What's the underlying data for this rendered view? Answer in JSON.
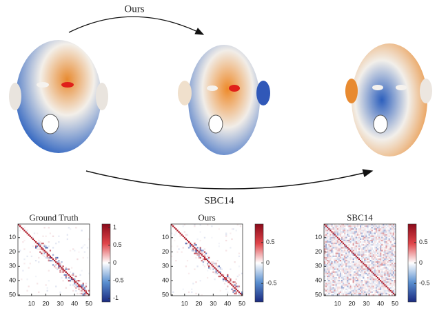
{
  "labels": {
    "top_arrow": "Ours",
    "bottom_arrow": "SBC14"
  },
  "matrices": [
    {
      "title": "Ground Truth",
      "xticks": [
        10,
        20,
        30,
        40,
        50
      ],
      "yticks": [
        10,
        20,
        30,
        40,
        50
      ],
      "xlim": [
        0.5,
        50.5
      ],
      "colorbar_lim": [
        -1.1,
        1.1
      ],
      "colorbar_ticks": [
        1,
        0.5,
        0,
        -0.5,
        -1
      ]
    },
    {
      "title": "Ours",
      "xticks": [
        10,
        20,
        30,
        40,
        50
      ],
      "yticks": [
        10,
        20,
        30,
        40,
        50
      ],
      "xlim": [
        0.5,
        50.5
      ],
      "colorbar_lim": [
        -0.95,
        0.95
      ],
      "colorbar_ticks": [
        0.5,
        0,
        -0.5
      ]
    },
    {
      "title": "SBC14",
      "xticks": [
        10,
        20,
        30,
        40,
        50
      ],
      "yticks": [
        10,
        20,
        30,
        40,
        50
      ],
      "xlim": [
        0.5,
        50.5
      ],
      "colorbar_lim": [
        -0.95,
        0.95
      ],
      "colorbar_ticks": [
        0.5,
        0,
        -0.5
      ]
    }
  ]
}
